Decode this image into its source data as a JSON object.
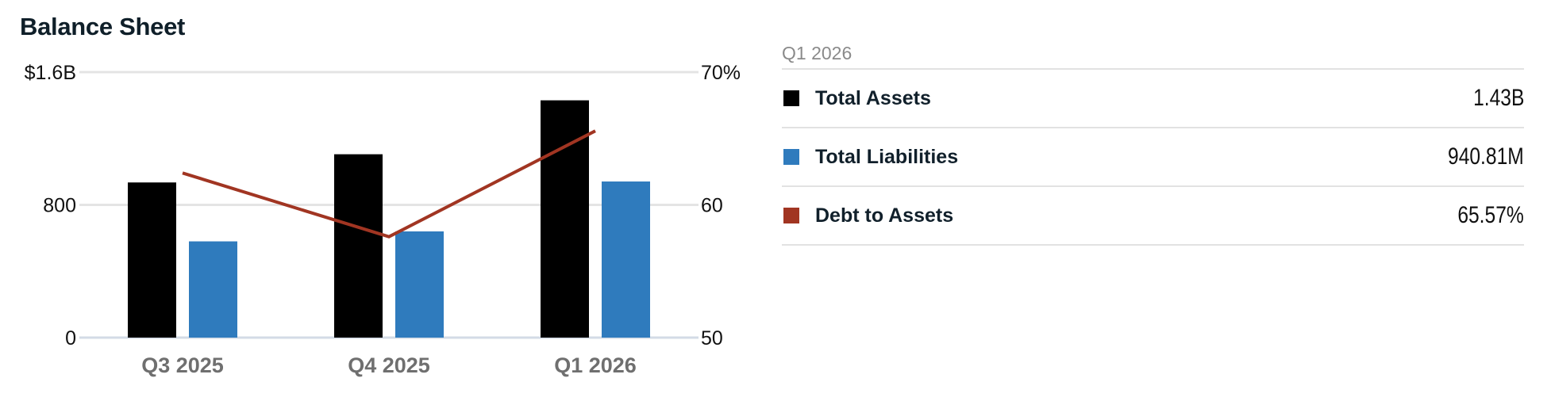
{
  "title": "Balance Sheet",
  "colors": {
    "total_assets": "#000000",
    "total_liabilities": "#2f7bbd",
    "debt_to_assets": "#a13522",
    "grid": "#e4e4e4"
  },
  "legend": {
    "period": "Q1 2026",
    "rows": [
      {
        "label": "Total Assets",
        "value": "1.43B",
        "color": "#000000"
      },
      {
        "label": "Total Liabilities",
        "value": "940.81M",
        "color": "#2f7bbd"
      },
      {
        "label": "Debt to Assets",
        "value": "65.57%",
        "color": "#a13522"
      }
    ]
  },
  "chart_data": {
    "type": "bar",
    "title": "Balance Sheet",
    "categories": [
      "Q3 2025",
      "Q4 2025",
      "Q1 2026"
    ],
    "series": [
      {
        "name": "Total Assets",
        "kind": "bar",
        "axis": "left",
        "values": [
          935,
          1105,
          1430
        ]
      },
      {
        "name": "Total Liabilities",
        "kind": "bar",
        "axis": "left",
        "values": [
          580,
          640,
          940.81
        ]
      },
      {
        "name": "Debt to Assets",
        "kind": "line",
        "axis": "right",
        "values": [
          62.4,
          57.6,
          65.57
        ]
      }
    ],
    "y_left": {
      "min": 0,
      "max": 1600,
      "ticks": [
        0,
        800,
        1600
      ],
      "tick_labels": [
        "0",
        "800",
        "$1.6B"
      ]
    },
    "y_right": {
      "min": 50,
      "max": 70,
      "ticks": [
        50,
        60,
        70
      ],
      "tick_labels": [
        "50",
        "60",
        "70%"
      ]
    },
    "grid": true,
    "legend_position": "right"
  }
}
